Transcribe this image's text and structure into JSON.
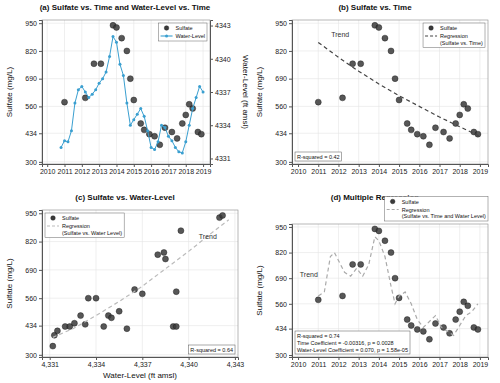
{
  "chart_data": [
    {
      "type": "scatter",
      "title": "(a) Sulfate vs. Time and Water-Level vs. Time",
      "ylabel": "Sulfate (mg/L)",
      "y2label": "Water-Level (ft amsl)",
      "xlim": [
        2009.7,
        2019.4
      ],
      "xticks": [
        2010,
        2011,
        2012,
        2013,
        2014,
        2015,
        2016,
        2017,
        2018,
        2019
      ],
      "ylim": [
        290,
        965
      ],
      "yticks": [
        300,
        434,
        560,
        690,
        820,
        950
      ],
      "y2lim": [
        4330.5,
        4343.5
      ],
      "y2ticks": [
        4331,
        4334,
        4337,
        4340,
        4343
      ],
      "grid": true,
      "legend": "top-right",
      "series": [
        {
          "name": "Sulfate",
          "type": "scatter",
          "marker": "circle",
          "color": "#3a3a3a",
          "x": [
            2011.0,
            2012.2,
            2012.7,
            2013.1,
            2013.8,
            2014.0,
            2014.3,
            2014.6,
            2014.8,
            2015.0,
            2015.4,
            2015.6,
            2015.9,
            2016.2,
            2016.5,
            2016.8,
            2017.2,
            2017.5,
            2017.8,
            2018.0,
            2018.2,
            2018.4,
            2018.7,
            2018.9
          ],
          "values": [
            580,
            600,
            760,
            760,
            940,
            930,
            880,
            820,
            690,
            590,
            480,
            450,
            430,
            420,
            380,
            460,
            440,
            410,
            480,
            520,
            570,
            550,
            440,
            430
          ]
        },
        {
          "name": "Water-Level",
          "type": "line",
          "marker": "circle",
          "color": "#3a9fd0",
          "axis": "y2",
          "x": [
            2010.8,
            2011.0,
            2011.2,
            2011.4,
            2011.6,
            2011.8,
            2012.0,
            2012.2,
            2012.4,
            2012.6,
            2012.8,
            2013.0,
            2013.2,
            2013.4,
            2013.6,
            2013.8,
            2014.0,
            2014.2,
            2014.4,
            2014.6,
            2014.8,
            2015.0,
            2015.2,
            2015.4,
            2015.6,
            2015.8,
            2016.0,
            2016.2,
            2016.4,
            2016.6,
            2016.8,
            2017.0,
            2017.2,
            2017.4,
            2017.6,
            2017.8,
            2018.0,
            2018.2,
            2018.4,
            2018.6,
            2018.8,
            2019.0
          ],
          "values": [
            4332.0,
            4332.6,
            4332.5,
            4333.5,
            4336.0,
            4337.2,
            4337.5,
            4337.0,
            4336.5,
            4336.8,
            4337.2,
            4337.8,
            4338.2,
            4338.8,
            4340.2,
            4342.0,
            4341.5,
            4339.5,
            4338.5,
            4336.0,
            4334.0,
            4334.5,
            4335.0,
            4335.5,
            4334.8,
            4333.5,
            4332.0,
            4331.8,
            4332.5,
            4334.0,
            4333.8,
            4333.0,
            4332.6,
            4332.0,
            4331.6,
            4331.5,
            4332.5,
            4334.0,
            4335.5,
            4336.5,
            4337.5,
            4337.0
          ]
        }
      ]
    },
    {
      "type": "scatter",
      "title": "(b) Sulfate vs. Time",
      "ylabel": "Sulfate (mg/L)",
      "xlim": [
        2009.7,
        2019.4
      ],
      "xticks": [
        2010,
        2011,
        2012,
        2013,
        2014,
        2015,
        2016,
        2017,
        2018,
        2019
      ],
      "ylim": [
        290,
        965
      ],
      "yticks": [
        300,
        434,
        560,
        690,
        820,
        950
      ],
      "grid": true,
      "legend": "top-right",
      "annotations": [
        "Trend"
      ],
      "stats": [
        "R-squared = 0.42"
      ],
      "series": [
        {
          "name": "Sulfate",
          "type": "scatter",
          "marker": "circle",
          "color": "#3a3a3a",
          "x": [
            2011.0,
            2012.2,
            2012.7,
            2013.1,
            2013.8,
            2014.0,
            2014.3,
            2014.6,
            2014.8,
            2015.0,
            2015.4,
            2015.6,
            2015.9,
            2016.2,
            2016.5,
            2016.8,
            2017.2,
            2017.5,
            2017.8,
            2018.0,
            2018.2,
            2018.4,
            2018.7,
            2018.9
          ],
          "values": [
            580,
            600,
            760,
            760,
            940,
            930,
            880,
            820,
            690,
            590,
            480,
            450,
            430,
            420,
            380,
            460,
            440,
            410,
            480,
            520,
            570,
            550,
            440,
            430
          ]
        },
        {
          "name": "Regression (Sulfate vs. Time)",
          "type": "line",
          "line_style": "dashed",
          "color": "#444444",
          "x": [
            2011,
            2012,
            2013,
            2014,
            2015,
            2016,
            2017,
            2018,
            2019
          ],
          "values": [
            860,
            790,
            725,
            665,
            610,
            560,
            510,
            465,
            420
          ]
        }
      ]
    },
    {
      "type": "scatter",
      "title": "(c) Sulfate vs. Water-Level",
      "xlabel": "Water-Level (ft amsl)",
      "ylabel": "Sulfate (mg/L)",
      "xlim": [
        4330.5,
        4343.2
      ],
      "xticks": [
        {
          "value": 4331,
          "label": "4,331"
        },
        {
          "value": 4334,
          "label": "4,334"
        },
        {
          "value": 4337,
          "label": "4,337"
        },
        {
          "value": 4340,
          "label": "4,340"
        },
        {
          "value": 4343,
          "label": "4,343"
        }
      ],
      "ylim": [
        290,
        965
      ],
      "yticks": [
        300,
        434,
        560,
        690,
        820,
        950
      ],
      "grid": true,
      "legend": "top-left",
      "annotations": [
        "Trend"
      ],
      "stats": [
        "R-squared = 0.64"
      ],
      "series": [
        {
          "name": "Sulfate",
          "type": "scatter",
          "marker": "circle",
          "color": "#3a3a3a",
          "x": [
            4331.2,
            4331.3,
            4331.5,
            4332.0,
            4332.3,
            4332.6,
            4333.0,
            4333.3,
            4333.5,
            4334.0,
            4334.5,
            4334.8,
            4335.0,
            4335.5,
            4336.0,
            4336.5,
            4337.0,
            4338.0,
            4338.4,
            4338.5,
            4339.0,
            4339.2,
            4339.2,
            4339.5,
            4342.0,
            4342.2
          ],
          "values": [
            340,
            390,
            410,
            430,
            430,
            445,
            480,
            440,
            560,
            560,
            430,
            480,
            470,
            500,
            420,
            600,
            580,
            760,
            770,
            740,
            430,
            430,
            590,
            870,
            930,
            940
          ]
        },
        {
          "name": "Regression (Sulfate vs. Water Level)",
          "type": "line",
          "line_style": "dashed",
          "color": "#bbbbbb",
          "x": [
            4331.2,
            4332.5,
            4334.0,
            4335.5,
            4337.0,
            4338.5,
            4340.0,
            4341.5,
            4342.6
          ],
          "values": [
            380,
            420,
            480,
            545,
            615,
            695,
            775,
            860,
            920
          ]
        }
      ]
    },
    {
      "type": "scatter",
      "title": "(d) Multiple Regression",
      "ylabel": "Sulfate (mg/L)",
      "xlim": [
        2009.7,
        2019.4
      ],
      "xticks": [
        2010,
        2011,
        2012,
        2013,
        2014,
        2015,
        2016,
        2017,
        2018,
        2019
      ],
      "ylim": [
        290,
        965
      ],
      "yticks": [
        300,
        434,
        560,
        690,
        820,
        950
      ],
      "grid": true,
      "legend": "top",
      "annotations": [
        "Trend"
      ],
      "stats": [
        "R-squared = 0.74",
        "Time Coefficient = -0.00316, p = 0.0028",
        "Water-Level Coefficient = 0.070, p = 1.58e-05"
      ],
      "series": [
        {
          "name": "Sulfate",
          "type": "scatter",
          "marker": "circle",
          "color": "#3a3a3a",
          "x": [
            2011.0,
            2012.2,
            2012.7,
            2013.1,
            2013.8,
            2014.0,
            2014.3,
            2014.6,
            2014.8,
            2015.0,
            2015.4,
            2015.6,
            2015.9,
            2016.2,
            2016.5,
            2016.8,
            2017.2,
            2017.5,
            2017.8,
            2018.0,
            2018.2,
            2018.4,
            2018.7,
            2018.9
          ],
          "values": [
            580,
            600,
            760,
            760,
            940,
            930,
            880,
            820,
            690,
            590,
            480,
            450,
            430,
            420,
            380,
            460,
            440,
            410,
            480,
            520,
            570,
            550,
            440,
            430
          ]
        },
        {
          "name": "Regression (Sulfate vs. Time and Water Level)",
          "type": "line",
          "line_style": "dashed",
          "color": "#aaaaaa",
          "x": [
            2011.0,
            2011.3,
            2011.6,
            2011.8,
            2012.0,
            2012.3,
            2012.6,
            2012.9,
            2013.2,
            2013.5,
            2013.8,
            2014.0,
            2014.3,
            2014.6,
            2014.8,
            2015.0,
            2015.3,
            2015.6,
            2015.9,
            2016.2,
            2016.5,
            2016.8,
            2017.1,
            2017.4,
            2017.7,
            2018.0,
            2018.3,
            2018.6,
            2018.9
          ],
          "values": [
            600,
            620,
            800,
            820,
            780,
            720,
            700,
            740,
            700,
            760,
            900,
            880,
            800,
            650,
            560,
            600,
            620,
            560,
            480,
            440,
            470,
            500,
            440,
            420,
            400,
            450,
            500,
            520,
            560
          ]
        }
      ]
    }
  ]
}
